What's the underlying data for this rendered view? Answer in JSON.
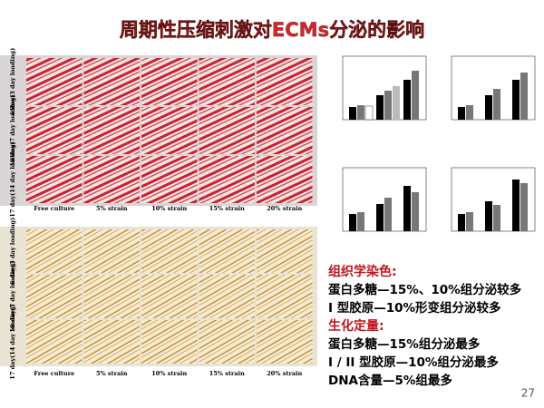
{
  "title": "周期性压缩刺激对ECMs分泌的影响",
  "panels": [
    {
      "rows": [
        "6 day(3 day loading)",
        "10 day(7 day loading)",
        "17 day(14 day loading)"
      ],
      "columns": [
        "Free culture",
        "5% strain",
        "10% strain",
        "15% strain",
        "20% strain"
      ]
    },
    {
      "rows": [
        "6 day(3 day loading)",
        "10 day(7 day loading)",
        "17 day(14 day loading)"
      ],
      "columns": [
        "Free culture",
        "5% strain",
        "10% strain",
        "15% strain",
        "20% strain"
      ]
    }
  ],
  "notes": [
    {
      "heading": "组织学染色:",
      "lines": [
        "蛋白多糖—15%、10%组分泌较多",
        "I 型胶原—10%形变组分泌较多"
      ]
    },
    {
      "heading": "生化定量:",
      "lines": [
        "蛋白多糖—15%组分泌最多",
        "I / II 型胶原—10%组分泌最多",
        "DNA含量—5%组最多"
      ]
    }
  ],
  "page_number": "27"
}
